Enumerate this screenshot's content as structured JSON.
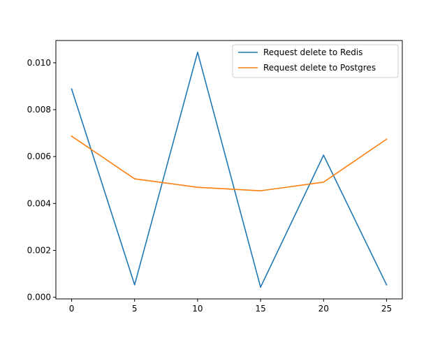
{
  "chart_data": {
    "type": "line",
    "x": [
      0,
      5,
      10,
      15,
      20,
      25
    ],
    "series": [
      {
        "name": "Request delete to Redis",
        "color": "#1f77b4",
        "values": [
          0.00888,
          0.00053,
          0.01045,
          0.00043,
          0.00606,
          0.00053
        ]
      },
      {
        "name": "Request delete to Postgres",
        "color": "#ff7f0e",
        "values": [
          0.00687,
          0.00505,
          0.00469,
          0.00454,
          0.00491,
          0.00674
        ]
      }
    ],
    "xticks": [
      0,
      5,
      10,
      15,
      20,
      25
    ],
    "xtick_labels": [
      "0",
      "5",
      "10",
      "15",
      "20",
      "25"
    ],
    "yticks": [
      0.0,
      0.002,
      0.004,
      0.006,
      0.008,
      0.01
    ],
    "ytick_labels": [
      "0.000",
      "0.002",
      "0.004",
      "0.006",
      "0.008",
      "0.010"
    ],
    "xlim": [
      -1.25,
      26.25
    ],
    "ylim": [
      -7e-05,
      0.01095
    ],
    "title": "",
    "xlabel": "",
    "ylabel": "",
    "grid": false,
    "legend_position": "upper right"
  }
}
